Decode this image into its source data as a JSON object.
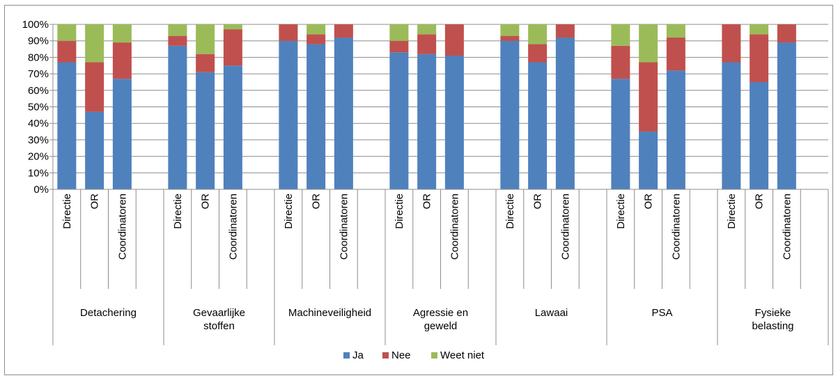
{
  "chart_data": {
    "type": "bar",
    "stacked": "percent",
    "groups": [
      "Detachering",
      "Gevaarlijke stoffen",
      "Machineveiligheid",
      "Agressie en geweld",
      "Lawaai",
      "PSA",
      "Fysieke belasting"
    ],
    "group_label_lines": [
      [
        "Detachering"
      ],
      [
        "Gevaarlijke",
        "stoffen"
      ],
      [
        "Machineveiligheid"
      ],
      [
        "Agressie en",
        "geweld"
      ],
      [
        "Lawaai"
      ],
      [
        "PSA"
      ],
      [
        "Fysieke",
        "belasting"
      ]
    ],
    "subcategories": [
      "Directie",
      "OR",
      "Coordinatoren"
    ],
    "series": [
      {
        "name": "Ja",
        "color": "#4F81BD",
        "values": [
          [
            77,
            47,
            67
          ],
          [
            87,
            71,
            75
          ],
          [
            90,
            88,
            92
          ],
          [
            83,
            82,
            81
          ],
          [
            90,
            77,
            92
          ],
          [
            67,
            35,
            72
          ],
          [
            77,
            65,
            89
          ]
        ]
      },
      {
        "name": "Nee",
        "color": "#C0504D",
        "values": [
          [
            13,
            30,
            22
          ],
          [
            6,
            11,
            22
          ],
          [
            10,
            6,
            8
          ],
          [
            7,
            12,
            19
          ],
          [
            3,
            11,
            8
          ],
          [
            20,
            42,
            20
          ],
          [
            23,
            29,
            11
          ]
        ]
      },
      {
        "name": "Weet niet",
        "color": "#9BBB59",
        "values": [
          [
            10,
            23,
            11
          ],
          [
            7,
            18,
            3
          ],
          [
            0,
            6,
            0
          ],
          [
            10,
            6,
            0
          ],
          [
            7,
            12,
            0
          ],
          [
            13,
            23,
            8
          ],
          [
            0,
            6,
            0
          ]
        ]
      }
    ],
    "y_ticks": [
      "0%",
      "10%",
      "20%",
      "30%",
      "40%",
      "50%",
      "60%",
      "70%",
      "80%",
      "90%",
      "100%"
    ],
    "ylim": [
      0,
      100
    ],
    "grid": true,
    "legend_position": "bottom",
    "title": "",
    "xlabel": "",
    "ylabel": ""
  }
}
